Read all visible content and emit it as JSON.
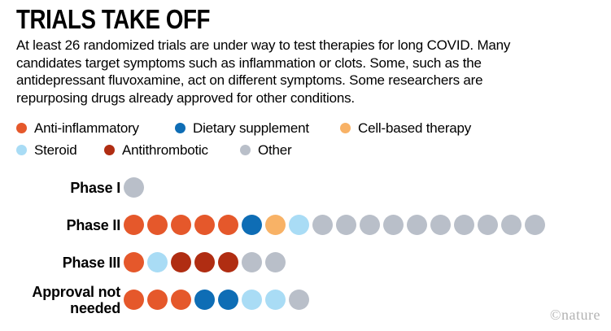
{
  "header": {
    "title": "TRIALS TAKE OFF"
  },
  "intro": {
    "lines": [
      "At least 26 randomized trials are under way to test therapies for long COVID. Many",
      "candidates target symptoms such as inflammation or clots. Some, such as the",
      "antidepressant fluvoxamine, act on different symptoms. Some researchers are",
      "repurposing drugs already approved for other conditions."
    ]
  },
  "colors": {
    "anti-inflammatory": "#E5582B",
    "dietary-supplement": "#0E6DB5",
    "cell-based-therapy": "#F8B266",
    "steroid": "#A9DCF5",
    "antithrombotic": "#B02D12",
    "other": "#B9BFC9"
  },
  "legend": {
    "rows": [
      [
        {
          "key": "anti-inflammatory",
          "label": "Anti-inflammatory"
        },
        {
          "key": "dietary-supplement",
          "label": "Dietary supplement"
        },
        {
          "key": "cell-based-therapy",
          "label": "Cell-based therapy"
        }
      ],
      [
        {
          "key": "steroid",
          "label": "Steroid"
        },
        {
          "key": "antithrombotic",
          "label": "Antithrombotic"
        },
        {
          "key": "other",
          "label": "Other"
        }
      ]
    ]
  },
  "chart_data": {
    "type": "dot-matrix",
    "title": "TRIALS TAKE OFF",
    "categories": [
      "Phase I",
      "Phase II",
      "Phase III",
      "Approval not needed"
    ],
    "rows": [
      {
        "label": "Phase I",
        "dots": [
          "other"
        ]
      },
      {
        "label": "Phase II",
        "dots": [
          "anti-inflammatory",
          "anti-inflammatory",
          "anti-inflammatory",
          "anti-inflammatory",
          "anti-inflammatory",
          "dietary-supplement",
          "cell-based-therapy",
          "steroid",
          "other",
          "other",
          "other",
          "other",
          "other",
          "other",
          "other",
          "other",
          "other",
          "other"
        ]
      },
      {
        "label": "Phase III",
        "dots": [
          "anti-inflammatory",
          "steroid",
          "antithrombotic",
          "antithrombotic",
          "antithrombotic",
          "other",
          "other"
        ]
      },
      {
        "label": "Approval not needed",
        "dots": [
          "anti-inflammatory",
          "anti-inflammatory",
          "anti-inflammatory",
          "dietary-supplement",
          "dietary-supplement",
          "steroid",
          "steroid",
          "other"
        ]
      }
    ],
    "counts": {
      "Phase I": {
        "other": 1
      },
      "Phase II": {
        "anti-inflammatory": 5,
        "dietary-supplement": 1,
        "cell-based-therapy": 1,
        "steroid": 1,
        "other": 10
      },
      "Phase III": {
        "anti-inflammatory": 1,
        "steroid": 1,
        "antithrombotic": 3,
        "other": 2
      },
      "Approval not needed": {
        "anti-inflammatory": 3,
        "dietary-supplement": 2,
        "steroid": 2,
        "other": 1
      }
    },
    "legend_position": "top"
  },
  "footer": {
    "credit": "©nature"
  }
}
